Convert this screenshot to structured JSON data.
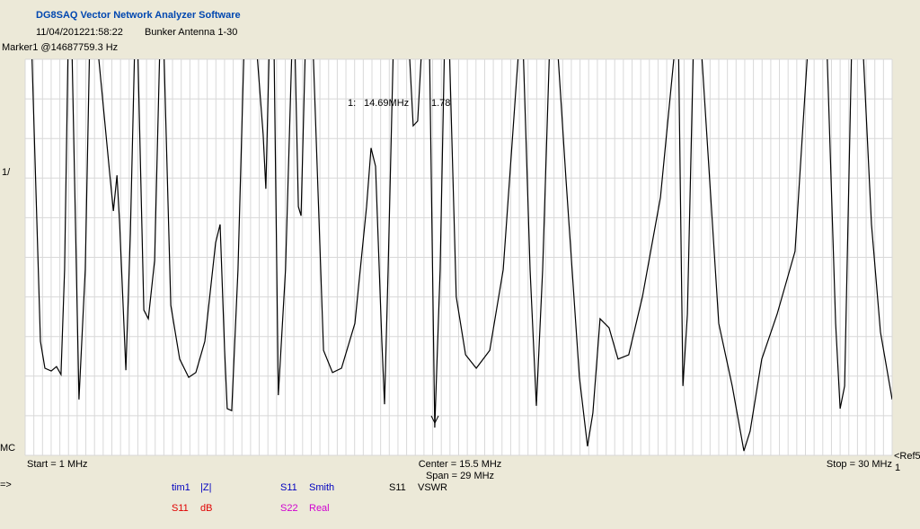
{
  "header": {
    "title": "DG8SAQ Vector Network Analyzer Software",
    "date": "11/04/2012",
    "time": "21:58:22",
    "name": "Bunker Antenna 1-30",
    "marker_info": "Marker1 @14687759.3 Hz"
  },
  "side_labels": {
    "top": "1/",
    "bottom": "MC",
    "ref": "<Ref5",
    "ref_value": "1",
    "arrow": "=>"
  },
  "marker": {
    "id": "1:",
    "freq": "14.69MHz",
    "value": "1.78"
  },
  "footer": {
    "start": "Start = 1 MHz",
    "center": "Center = 15.5 MHz",
    "span": "Span = 29 MHz",
    "stop": "Stop = 30 MHz"
  },
  "legend": [
    {
      "name": "tim1",
      "mode": "|Z|",
      "color": "#0000c0"
    },
    {
      "name": "S11",
      "mode": "dB",
      "color": "#e00000"
    },
    {
      "name": "S11",
      "mode": "Smith",
      "color": "#0000c0"
    },
    {
      "name": "S22",
      "mode": "Real",
      "color": "#d000d0"
    },
    {
      "name": "S11",
      "mode": "VSWR",
      "color": "#000000"
    }
  ],
  "chart_data": {
    "type": "line",
    "color": "#000000",
    "grid": true,
    "xlim": [
      1,
      30
    ],
    "ylim": [
      0,
      10
    ],
    "yticks": [
      0,
      1,
      2,
      3,
      4,
      5,
      6,
      7,
      8,
      9,
      10
    ],
    "x": [
      1.21,
      1.51,
      1.66,
      1.87,
      2.05,
      2.2,
      2.32,
      2.44,
      2.56,
      2.8,
      3.01,
      3.16,
      3.4,
      3.82,
      3.95,
      4.07,
      4.16,
      4.37,
      4.52,
      4.67,
      4.76,
      4.97,
      5.12,
      5.33,
      5.51,
      5.63,
      5.87,
      6.17,
      6.47,
      6.71,
      7.01,
      7.37,
      7.52,
      7.67,
      7.76,
      7.91,
      8.12,
      8.33,
      8.72,
      8.96,
      9.05,
      9.17,
      9.32,
      9.47,
      9.71,
      9.93,
      10.02,
      10.14,
      10.23,
      10.38,
      10.62,
      10.98,
      11.28,
      11.58,
      12.03,
      12.42,
      12.57,
      12.72,
      12.93,
      13.02,
      13.14,
      13.32,
      13.83,
      13.98,
      14.13,
      14.28,
      14.52,
      14.7,
      14.88,
      15.03,
      15.18,
      15.42,
      15.73,
      16.09,
      16.54,
      16.99,
      17.53,
      17.65,
      17.89,
      18.1,
      18.31,
      18.55,
      18.79,
      19.09,
      19.54,
      19.81,
      19.99,
      20.23,
      20.53,
      20.83,
      21.19,
      21.65,
      22.25,
      22.76,
      22.85,
      23.0,
      23.15,
      23.36,
      23.6,
      24.2,
      24.65,
      25.04,
      25.25,
      25.64,
      26.15,
      26.75,
      27.2,
      27.81,
      28.11,
      28.26,
      28.41,
      28.65,
      29.01,
      29.31,
      29.61,
      30
    ],
    "values": [
      10.5,
      2.88,
      2.2,
      2.13,
      2.24,
      2.04,
      4.69,
      10.5,
      10.5,
      1.41,
      4.69,
      10.5,
      10.5,
      7.19,
      6.17,
      7.07,
      5.83,
      2.15,
      5.6,
      10.5,
      10.5,
      3.67,
      3.45,
      4.92,
      10.5,
      10.5,
      3.79,
      2.43,
      1.97,
      2.09,
      2.88,
      5.37,
      5.83,
      2.65,
      1.18,
      1.13,
      4.69,
      10.5,
      10.5,
      8.1,
      6.73,
      10.5,
      10.5,
      1.52,
      4.69,
      10.5,
      10.5,
      6.28,
      6.05,
      10.5,
      10.5,
      2.65,
      2.09,
      2.2,
      3.33,
      6.28,
      7.76,
      7.3,
      2.88,
      1.29,
      4.69,
      10.5,
      10.5,
      8.32,
      8.44,
      10.5,
      10.5,
      0.7,
      4.69,
      10.5,
      10.5,
      4.01,
      2.54,
      2.2,
      2.65,
      4.69,
      10.5,
      10.5,
      4.69,
      1.25,
      4.69,
      10.5,
      10.5,
      6.96,
      1.97,
      0.23,
      1.07,
      3.45,
      3.22,
      2.43,
      2.54,
      4.01,
      6.51,
      10.5,
      10.5,
      1.75,
      3.56,
      10.5,
      10.5,
      3.33,
      1.75,
      0.11,
      0.61,
      2.43,
      3.56,
      5.15,
      10.5,
      10.5,
      3.33,
      1.18,
      1.75,
      10.5,
      10.5,
      5.83,
      3.11,
      1.41
    ]
  }
}
